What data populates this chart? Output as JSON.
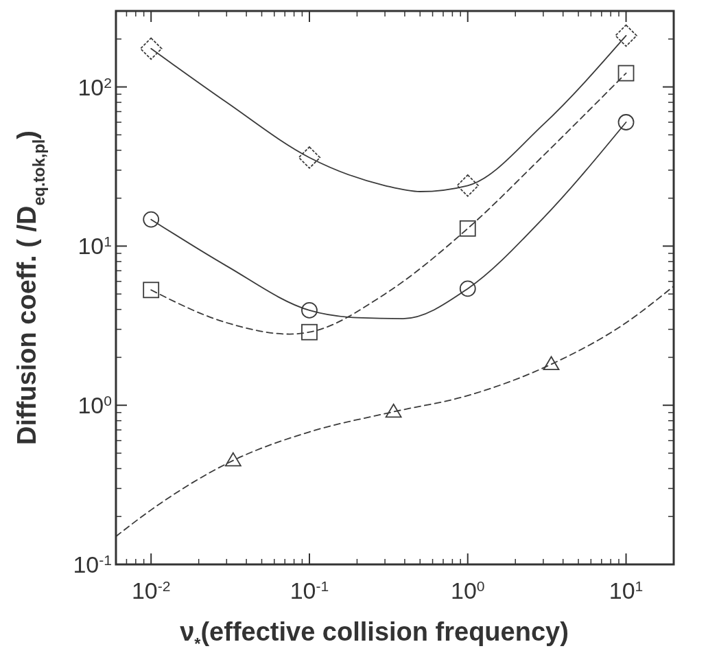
{
  "chart_data": {
    "type": "scatter",
    "xlabel": "ν$_{*}$(effective collision frequency)",
    "ylabel": "Diffusion coeff. ( /D$_{eq.tok,pl}$)",
    "log": "xy",
    "grid": false,
    "xlim": [
      0.006,
      20
    ],
    "ylim": [
      0.1,
      300
    ],
    "xticks": [
      {
        "value": 0.01,
        "label": "10$^{-2}$"
      },
      {
        "value": 0.1,
        "label": "10$^{-1}$"
      },
      {
        "value": 1,
        "label": "10$^{0}$"
      },
      {
        "value": 10,
        "label": "10$^{1}$"
      }
    ],
    "yticks": [
      {
        "value": 0.1,
        "label": "10$^{-1}$"
      },
      {
        "value": 1,
        "label": "10$^{0}$"
      },
      {
        "value": 10,
        "label": "10$^{1}$"
      },
      {
        "value": 100,
        "label": "10$^{2}$"
      }
    ],
    "series": [
      {
        "type": "line",
        "color": "#3a3a3a",
        "line_style": "solid",
        "marker": "none",
        "x": [
          0.01,
          0.03,
          0.1,
          0.3,
          0.5,
          1,
          3,
          10
        ],
        "values": [
          174,
          80,
          36,
          24,
          22,
          24,
          58,
          210
        ]
      },
      {
        "type": "line",
        "color": "#3a3a3a",
        "line_style": "solid",
        "marker": "none",
        "x": [
          0.01,
          0.03,
          0.1,
          0.2,
          0.39,
          1,
          3,
          10
        ],
        "values": [
          14.7,
          7.5,
          3.95,
          3.55,
          3.5,
          5.4,
          15,
          60
        ]
      },
      {
        "type": "line",
        "color": "#3a3a3a",
        "line_style": "dashed",
        "marker": "none",
        "x": [
          0.01,
          0.03,
          0.075,
          0.1,
          0.3,
          1,
          3,
          10
        ],
        "values": [
          5.3,
          3.3,
          2.8,
          2.88,
          5,
          12.9,
          37,
          122
        ]
      },
      {
        "type": "line",
        "color": "#3a3a3a",
        "line_style": "dashed",
        "marker": "none",
        "x": [
          0.006,
          0.01,
          0.033,
          0.1,
          0.34,
          1,
          3.37,
          10,
          20
        ],
        "values": [
          0.15,
          0.22,
          0.45,
          0.68,
          0.91,
          1.15,
          1.81,
          3.3,
          5.6
        ]
      },
      {
        "color": "#3a3a3a",
        "marker": "diamond",
        "x": [
          0.01,
          0.1,
          1,
          10
        ],
        "values": [
          174,
          36,
          24,
          210
        ]
      },
      {
        "color": "#3a3a3a",
        "marker": "circle",
        "x": [
          0.01,
          0.1,
          1,
          10
        ],
        "values": [
          14.7,
          3.95,
          5.4,
          60
        ]
      },
      {
        "color": "#3a3a3a",
        "marker": "square",
        "x": [
          0.01,
          0.1,
          1,
          10
        ],
        "values": [
          5.3,
          2.88,
          12.9,
          122
        ]
      },
      {
        "color": "#3a3a3a",
        "marker": "triangle",
        "x": [
          0.033,
          0.34,
          3.37
        ],
        "values": [
          0.45,
          0.91,
          1.81
        ]
      }
    ]
  }
}
